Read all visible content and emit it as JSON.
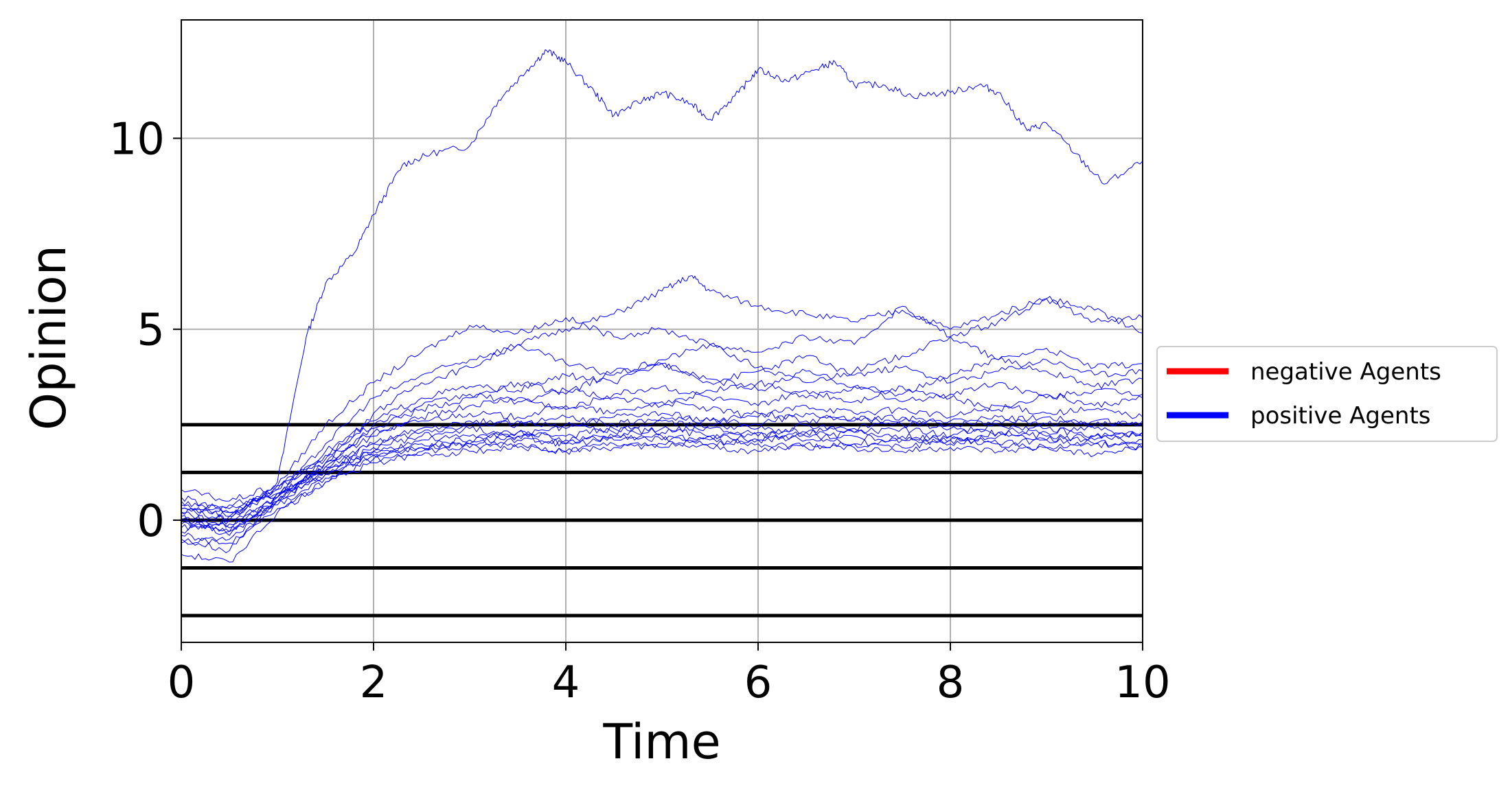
{
  "chart_data": {
    "type": "line",
    "xlabel": "Time",
    "ylabel": "Opinion",
    "xlim": [
      0,
      10
    ],
    "ylim": [
      -3.2,
      13.1
    ],
    "xticks": [
      0,
      2,
      4,
      6,
      8,
      10
    ],
    "yticks": [
      0,
      5,
      10
    ],
    "grid": true,
    "legend": {
      "placement": "right, outside plot area",
      "entries": [
        {
          "label": "negative Agents",
          "color": "#ff0000"
        },
        {
          "label": "positive Agents",
          "color": "#0000ff"
        }
      ]
    },
    "threshold_lines": {
      "color": "#000000",
      "y": [
        2.5,
        1.25,
        0,
        -1.25,
        -2.5
      ]
    },
    "series_style": {
      "color": "#0000ff",
      "group": "positive Agents"
    },
    "series": [
      {
        "x": [
          0,
          0.5,
          1,
          1.3,
          1.5,
          1.8,
          2,
          2.3,
          2.6,
          3,
          3.3,
          3.6,
          3.8,
          4,
          4.3,
          4.5,
          4.8,
          5,
          5.3,
          5.5,
          5.8,
          6,
          6.3,
          6.6,
          6.8,
          7,
          7.3,
          7.6,
          8,
          8.3,
          8.5,
          8.8,
          9,
          9.3,
          9.6,
          10
        ],
        "y": [
          0.3,
          0.0,
          1.0,
          4.8,
          6.2,
          7.0,
          8.0,
          9.3,
          9.6,
          9.8,
          11.0,
          11.8,
          12.3,
          12.0,
          11.2,
          10.6,
          11.0,
          11.2,
          10.9,
          10.5,
          11.2,
          11.8,
          11.5,
          11.8,
          12.0,
          11.4,
          11.4,
          11.1,
          11.2,
          11.4,
          11.2,
          10.2,
          10.4,
          9.6,
          8.8,
          9.4
        ]
      },
      {
        "x": [
          0,
          0.5,
          1,
          1.5,
          2,
          2.5,
          3,
          3.5,
          4,
          4.5,
          5,
          5.3,
          5.5,
          6,
          6.5,
          7,
          7.5,
          8,
          8.5,
          9,
          9.5,
          10
        ],
        "y": [
          0.0,
          -0.3,
          0.5,
          1.5,
          2.8,
          3.6,
          4.0,
          4.6,
          5.0,
          5.4,
          6.0,
          6.4,
          6.0,
          5.6,
          5.4,
          5.2,
          5.5,
          5.0,
          5.4,
          5.8,
          5.2,
          5.3
        ]
      },
      {
        "x": [
          0,
          0.5,
          1,
          1.5,
          2,
          2.5,
          3,
          3.5,
          4,
          4.5,
          5,
          5.5,
          6,
          6.5,
          7,
          7.5,
          8,
          8.5,
          9,
          9.5,
          10
        ],
        "y": [
          0.4,
          0.1,
          0.9,
          2.5,
          3.6,
          4.4,
          5.1,
          4.9,
          5.3,
          4.8,
          5.0,
          4.6,
          4.4,
          4.8,
          4.6,
          5.6,
          4.8,
          5.2,
          5.8,
          5.5,
          4.9
        ]
      },
      {
        "x": [
          0,
          0.5,
          1,
          1.5,
          2,
          2.5,
          3,
          3.5,
          4,
          4.5,
          5,
          5.5,
          6,
          6.5,
          7,
          7.5,
          8,
          8.5,
          9,
          9.5,
          10
        ],
        "y": [
          -0.5,
          -0.8,
          0.6,
          2.0,
          3.2,
          3.8,
          4.2,
          4.6,
          4.1,
          3.8,
          4.2,
          4.6,
          4.0,
          3.6,
          3.9,
          4.3,
          4.8,
          4.2,
          4.5,
          4.0,
          4.1
        ]
      },
      {
        "x": [
          0,
          0.5,
          1,
          1.5,
          2,
          2.5,
          3,
          3.5,
          4,
          4.5,
          5,
          5.5,
          6,
          6.5,
          7,
          7.5,
          8,
          8.5,
          9,
          9.5,
          10
        ],
        "y": [
          0.2,
          0.3,
          0.8,
          1.8,
          2.6,
          3.2,
          3.5,
          3.4,
          3.8,
          3.6,
          4.1,
          3.7,
          3.4,
          3.9,
          3.5,
          3.3,
          3.8,
          4.2,
          3.9,
          3.5,
          3.7
        ]
      },
      {
        "x": [
          0,
          0.5,
          1,
          1.5,
          2,
          2.5,
          3,
          3.5,
          4,
          4.5,
          5,
          5.5,
          6,
          6.5,
          7,
          7.5,
          8,
          8.5,
          9,
          9.5,
          10
        ],
        "y": [
          0.6,
          0.2,
          0.7,
          1.5,
          2.2,
          2.7,
          3.0,
          3.2,
          2.9,
          3.3,
          3.5,
          3.2,
          3.0,
          3.4,
          3.1,
          3.5,
          3.2,
          2.9,
          3.3,
          3.0,
          3.2
        ]
      },
      {
        "x": [
          0,
          0.5,
          1,
          1.5,
          2,
          2.5,
          3,
          3.5,
          4,
          4.5,
          5,
          5.5,
          6,
          6.5,
          7,
          7.5,
          8,
          8.5,
          9,
          9.5,
          10
        ],
        "y": [
          -0.2,
          -0.1,
          0.6,
          1.4,
          2.0,
          2.3,
          2.5,
          2.6,
          2.4,
          2.7,
          2.8,
          2.6,
          2.5,
          2.8,
          2.6,
          2.7,
          2.5,
          2.6,
          2.7,
          2.5,
          2.6
        ]
      },
      {
        "x": [
          0,
          0.5,
          1,
          1.5,
          2,
          2.5,
          3,
          3.5,
          4,
          4.5,
          5,
          5.5,
          6,
          6.5,
          7,
          7.5,
          8,
          8.5,
          9,
          9.5,
          10
        ],
        "y": [
          0.1,
          -0.4,
          0.5,
          1.2,
          1.8,
          2.1,
          2.2,
          2.3,
          2.2,
          2.4,
          2.3,
          2.5,
          2.4,
          2.3,
          2.4,
          2.6,
          2.4,
          2.3,
          2.4,
          2.2,
          2.3
        ]
      },
      {
        "x": [
          0,
          0.5,
          1,
          1.5,
          2,
          2.5,
          3,
          3.5,
          4,
          4.5,
          5,
          5.5,
          6,
          6.5,
          7,
          7.5,
          8,
          8.5,
          9,
          9.5,
          10
        ],
        "y": [
          -0.6,
          -0.5,
          0.4,
          1.1,
          1.7,
          1.9,
          2.0,
          2.1,
          2.0,
          2.2,
          2.1,
          2.2,
          2.1,
          2.3,
          2.2,
          2.1,
          2.2,
          2.0,
          2.1,
          2.2,
          2.0
        ]
      },
      {
        "x": [
          0,
          0.5,
          1,
          1.5,
          2,
          2.5,
          3,
          3.5,
          4,
          4.5,
          5,
          5.5,
          6,
          6.5,
          7,
          7.5,
          8,
          8.5,
          9,
          9.5,
          10
        ],
        "y": [
          0.3,
          0.4,
          0.7,
          1.3,
          1.9,
          2.2,
          2.4,
          2.2,
          2.5,
          2.3,
          2.6,
          2.4,
          2.2,
          2.5,
          2.3,
          2.4,
          2.2,
          2.5,
          2.3,
          2.4,
          2.2
        ]
      },
      {
        "x": [
          0,
          0.5,
          1,
          1.5,
          2,
          2.5,
          3,
          3.5,
          4,
          4.5,
          5,
          5.5,
          6,
          6.5,
          7,
          7.5,
          8,
          8.5,
          9,
          9.5,
          10
        ],
        "y": [
          -0.9,
          -1.1,
          0.2,
          1.0,
          1.6,
          1.8,
          1.9,
          2.0,
          1.8,
          1.9,
          2.0,
          1.9,
          1.8,
          2.0,
          1.9,
          1.8,
          1.9,
          1.8,
          1.9,
          1.7,
          1.9
        ]
      },
      {
        "x": [
          0,
          0.5,
          1,
          1.5,
          2,
          2.5,
          3,
          3.5,
          4,
          4.5,
          5,
          5.5,
          6,
          6.5,
          7,
          7.5,
          8,
          8.5,
          9,
          9.5,
          10
        ],
        "y": [
          0.8,
          0.5,
          0.9,
          1.6,
          2.3,
          2.6,
          2.8,
          2.7,
          3.0,
          2.8,
          3.1,
          2.9,
          2.7,
          3.0,
          2.8,
          2.9,
          2.7,
          3.0,
          2.8,
          2.9,
          2.7
        ]
      },
      {
        "x": [
          0,
          0.5,
          1,
          1.5,
          2,
          2.5,
          3,
          3.5,
          4,
          4.5,
          5,
          5.5,
          6,
          6.5,
          7,
          7.5,
          8,
          8.5,
          9,
          9.5,
          10
        ],
        "y": [
          -0.3,
          0.0,
          0.5,
          1.3,
          1.8,
          2.0,
          2.1,
          2.3,
          2.1,
          2.2,
          2.4,
          2.2,
          2.3,
          2.1,
          2.3,
          2.2,
          2.1,
          2.3,
          2.2,
          2.1,
          2.3
        ]
      },
      {
        "x": [
          0,
          0.5,
          1,
          1.5,
          2,
          2.5,
          3,
          3.5,
          4,
          4.5,
          5,
          5.5,
          6,
          6.5,
          7,
          7.5,
          8,
          8.5,
          9,
          9.5,
          10
        ],
        "y": [
          0.5,
          0.2,
          0.8,
          1.7,
          2.5,
          3.0,
          3.3,
          3.1,
          3.4,
          3.2,
          3.0,
          3.4,
          3.6,
          3.2,
          3.5,
          3.1,
          3.3,
          3.6,
          3.2,
          3.4,
          3.3
        ]
      },
      {
        "x": [
          0,
          0.5,
          1,
          1.5,
          2,
          2.5,
          3,
          3.5,
          4,
          4.5,
          5,
          5.5,
          6,
          6.5,
          7,
          7.5,
          8,
          8.5,
          9,
          9.5,
          10
        ],
        "y": [
          -0.1,
          -0.3,
          0.6,
          1.4,
          2.0,
          2.4,
          2.6,
          2.5,
          2.7,
          2.5,
          2.7,
          2.6,
          2.8,
          2.6,
          2.7,
          2.5,
          2.6,
          2.7,
          2.5,
          2.6,
          2.5
        ]
      },
      {
        "x": [
          0,
          0.5,
          1,
          1.5,
          2,
          2.5,
          3,
          3.5,
          4,
          4.5,
          5,
          5.5,
          6,
          6.5,
          7,
          7.5,
          8,
          8.5,
          9,
          9.5,
          10
        ],
        "y": [
          0.0,
          0.1,
          0.7,
          1.2,
          1.7,
          1.9,
          2.0,
          2.2,
          2.0,
          2.1,
          2.2,
          2.0,
          2.1,
          2.2,
          2.0,
          2.1,
          2.0,
          2.2,
          2.1,
          2.0,
          2.1
        ]
      },
      {
        "x": [
          0,
          0.5,
          1,
          1.5,
          2,
          2.5,
          3,
          3.5,
          4,
          4.5,
          5,
          5.5,
          6,
          6.5,
          7,
          7.5,
          8,
          8.5,
          9,
          9.5,
          10
        ],
        "y": [
          0.2,
          -0.2,
          0.5,
          1.5,
          2.4,
          2.9,
          3.2,
          3.6,
          3.3,
          3.9,
          4.1,
          3.6,
          3.9,
          4.3,
          3.8,
          4.0,
          3.6,
          3.9,
          4.2,
          3.8,
          3.9
        ]
      },
      {
        "x": [
          0,
          0.5,
          1,
          1.5,
          2,
          2.5,
          3,
          3.5,
          4,
          4.5,
          5,
          5.5,
          6,
          6.5,
          7,
          7.5,
          8,
          8.5,
          9,
          9.5,
          10
        ],
        "y": [
          -0.4,
          -0.6,
          0.3,
          1.0,
          1.5,
          1.7,
          1.8,
          1.9,
          1.8,
          2.0,
          1.9,
          2.1,
          2.0,
          1.9,
          2.0,
          1.9,
          2.1,
          2.0,
          1.9,
          2.0,
          1.9
        ]
      }
    ]
  }
}
